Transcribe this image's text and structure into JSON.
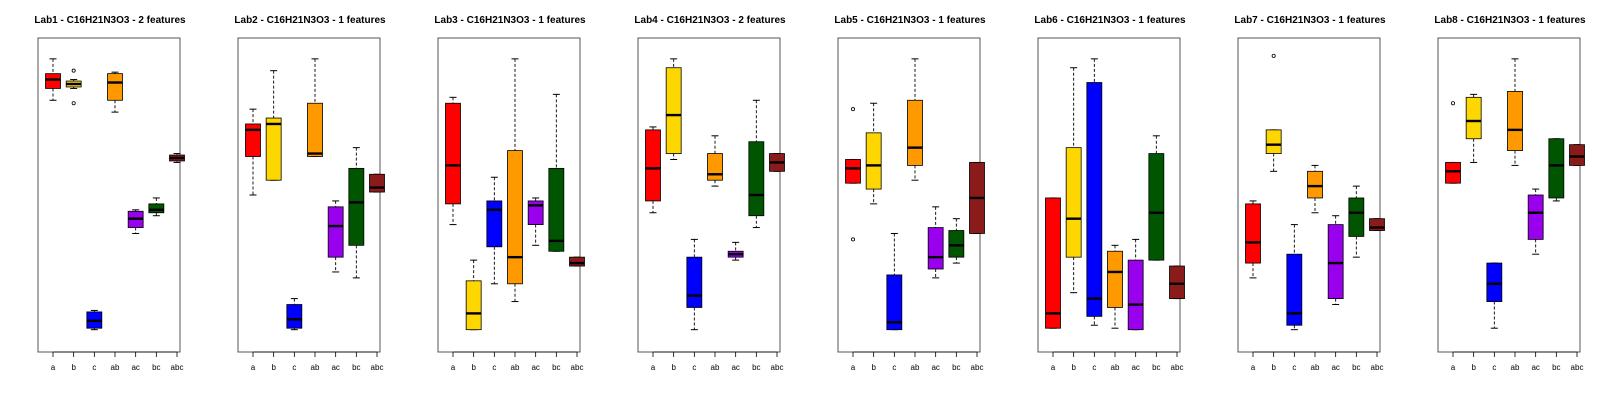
{
  "colors": {
    "a": "#ff0000",
    "b": "#ffd700",
    "c": "#0000ff",
    "ab": "#ff9900",
    "ac": "#9900ee",
    "bc": "#005500",
    "abc": "#8b1a1a"
  },
  "chart_data": [
    {
      "type": "box",
      "title": "Lab1 - C16H21N3O3 - 2 features",
      "categories": [
        "a",
        "b",
        "c",
        "ab",
        "ac",
        "bc",
        "abc"
      ],
      "ylim": [
        0,
        100
      ],
      "boxes": {
        "a": {
          "whislo": 82,
          "q1": 86,
          "med": 89,
          "q3": 91,
          "whishi": 96,
          "outliers": []
        },
        "b": {
          "whislo": 86,
          "q1": 86.5,
          "med": 87.5,
          "q3": 88.5,
          "whishi": 89,
          "outliers": [
            92,
            81
          ]
        },
        "c": {
          "whislo": 4.5,
          "q1": 5,
          "med": 7.5,
          "q3": 10.5,
          "whishi": 11,
          "outliers": []
        },
        "ab": {
          "whislo": 78,
          "q1": 82,
          "med": 88,
          "q3": 91,
          "whishi": 91.5,
          "outliers": []
        },
        "ac": {
          "whislo": 37,
          "q1": 39,
          "med": 42,
          "q3": 44.5,
          "whishi": 45,
          "outliers": []
        },
        "bc": {
          "whislo": 43,
          "q1": 44,
          "med": 45,
          "q3": 47,
          "whishi": 49,
          "outliers": []
        },
        "abc": {
          "whislo": 61,
          "q1": 61.5,
          "med": 62.5,
          "q3": 63.5,
          "whishi": 64,
          "outliers": []
        }
      }
    },
    {
      "type": "box",
      "title": "Lab2 - C16H21N3O3 - 1 features",
      "categories": [
        "a",
        "b",
        "c",
        "ab",
        "ac",
        "bc",
        "abc"
      ],
      "ylim": [
        0,
        100
      ],
      "boxes": {
        "a": {
          "whislo": 50,
          "q1": 63,
          "med": 72,
          "q3": 74,
          "whishi": 79,
          "outliers": []
        },
        "b": {
          "whislo": 55,
          "q1": 55,
          "med": 74,
          "q3": 76,
          "whishi": 92,
          "outliers": []
        },
        "c": {
          "whislo": 4.5,
          "q1": 5,
          "med": 8,
          "q3": 13,
          "whishi": 15,
          "outliers": []
        },
        "ab": {
          "whislo": 63,
          "q1": 63,
          "med": 64,
          "q3": 81,
          "whishi": 96,
          "outliers": []
        },
        "ac": {
          "whislo": 24,
          "q1": 29,
          "med": 39.5,
          "q3": 46,
          "whishi": 48,
          "outliers": []
        },
        "bc": {
          "whislo": 22,
          "q1": 33,
          "med": 47.5,
          "q3": 59,
          "whishi": 66,
          "outliers": []
        },
        "abc": {
          "whislo": 51,
          "q1": 51,
          "med": 52.5,
          "q3": 57,
          "whishi": 57,
          "outliers": []
        }
      }
    },
    {
      "type": "box",
      "title": "Lab3 - C16H21N3O3 - 1 features",
      "categories": [
        "a",
        "b",
        "c",
        "ab",
        "ac",
        "bc",
        "abc"
      ],
      "ylim": [
        0,
        100
      ],
      "boxes": {
        "a": {
          "whislo": 40,
          "q1": 47,
          "med": 60,
          "q3": 81,
          "whishi": 83,
          "outliers": []
        },
        "b": {
          "whislo": 4.5,
          "q1": 4.5,
          "med": 10,
          "q3": 21,
          "whishi": 28,
          "outliers": []
        },
        "c": {
          "whislo": 20,
          "q1": 32.5,
          "med": 45,
          "q3": 48,
          "whishi": 56,
          "outliers": []
        },
        "ab": {
          "whislo": 14,
          "q1": 20,
          "med": 29,
          "q3": 65,
          "whishi": 96,
          "outliers": []
        },
        "ac": {
          "whislo": 33,
          "q1": 40,
          "med": 46.5,
          "q3": 48,
          "whishi": 49,
          "outliers": []
        },
        "bc": {
          "whislo": 31,
          "q1": 31,
          "med": 34.5,
          "q3": 59,
          "whishi": 84,
          "outliers": []
        },
        "abc": {
          "whislo": 26,
          "q1": 26,
          "med": 27,
          "q3": 29,
          "whishi": 29,
          "outliers": []
        }
      }
    },
    {
      "type": "box",
      "title": "Lab4 - C16H21N3O3 - 2 features",
      "categories": [
        "a",
        "b",
        "c",
        "ab",
        "ac",
        "bc",
        "abc"
      ],
      "ylim": [
        0,
        100
      ],
      "boxes": {
        "a": {
          "whislo": 44,
          "q1": 48,
          "med": 59,
          "q3": 72,
          "whishi": 73,
          "outliers": []
        },
        "b": {
          "whislo": 62,
          "q1": 64,
          "med": 77,
          "q3": 93,
          "whishi": 96,
          "outliers": []
        },
        "c": {
          "whislo": 4.5,
          "q1": 12,
          "med": 16,
          "q3": 29,
          "whishi": 35,
          "outliers": []
        },
        "ab": {
          "whislo": 53,
          "q1": 55,
          "med": 57,
          "q3": 64,
          "whishi": 70,
          "outliers": []
        },
        "ac": {
          "whislo": 28,
          "q1": 29,
          "med": 30,
          "q3": 31,
          "whishi": 34,
          "outliers": []
        },
        "bc": {
          "whislo": 39,
          "q1": 43,
          "med": 50,
          "q3": 68,
          "whishi": 82,
          "outliers": []
        },
        "abc": {
          "whislo": 58,
          "q1": 58,
          "med": 61,
          "q3": 64,
          "whishi": 64,
          "outliers": []
        }
      }
    },
    {
      "type": "box",
      "title": "Lab5 - C16H21N3O3 - 1 features",
      "categories": [
        "a",
        "b",
        "c",
        "ab",
        "ac",
        "bc",
        "abc"
      ],
      "ylim": [
        0,
        100
      ],
      "boxes": {
        "a": {
          "whislo": 54,
          "q1": 54,
          "med": 59,
          "q3": 62,
          "whishi": 62,
          "outliers": [
            79,
            35
          ]
        },
        "b": {
          "whislo": 47,
          "q1": 52,
          "med": 60,
          "q3": 71,
          "whishi": 81,
          "outliers": []
        },
        "c": {
          "whislo": 4.5,
          "q1": 4.5,
          "med": 7,
          "q3": 23,
          "whishi": 37,
          "outliers": []
        },
        "ab": {
          "whislo": 55,
          "q1": 60,
          "med": 66,
          "q3": 82,
          "whishi": 96,
          "outliers": []
        },
        "ac": {
          "whislo": 22,
          "q1": 25,
          "med": 29,
          "q3": 39,
          "whishi": 46,
          "outliers": []
        },
        "bc": {
          "whislo": 27,
          "q1": 29,
          "med": 33,
          "q3": 38,
          "whishi": 42,
          "outliers": []
        },
        "abc": {
          "whislo": 37,
          "q1": 37,
          "med": 49,
          "q3": 61,
          "whishi": 61,
          "outliers": []
        }
      }
    },
    {
      "type": "box",
      "title": "Lab6 - C16H21N3O3 - 1 features",
      "categories": [
        "a",
        "b",
        "c",
        "ab",
        "ac",
        "bc",
        "abc"
      ],
      "ylim": [
        0,
        100
      ],
      "boxes": {
        "a": {
          "whislo": 5,
          "q1": 5,
          "med": 10,
          "q3": 49,
          "whishi": 49,
          "outliers": []
        },
        "b": {
          "whislo": 17,
          "q1": 29,
          "med": 42,
          "q3": 66,
          "whishi": 93,
          "outliers": []
        },
        "c": {
          "whislo": 6,
          "q1": 9,
          "med": 15,
          "q3": 88,
          "whishi": 96,
          "outliers": []
        },
        "ab": {
          "whislo": 5,
          "q1": 12,
          "med": 24,
          "q3": 31,
          "whishi": 33,
          "outliers": []
        },
        "ac": {
          "whislo": 4.5,
          "q1": 4.5,
          "med": 13,
          "q3": 28,
          "whishi": 35,
          "outliers": []
        },
        "bc": {
          "whislo": 28,
          "q1": 28,
          "med": 44,
          "q3": 64,
          "whishi": 70,
          "outliers": []
        },
        "abc": {
          "whislo": 15,
          "q1": 15,
          "med": 20,
          "q3": 26,
          "whishi": 26,
          "outliers": []
        }
      }
    },
    {
      "type": "box",
      "title": "Lab7 - C16H21N3O3 - 1 features",
      "categories": [
        "a",
        "b",
        "c",
        "ab",
        "ac",
        "bc",
        "abc"
      ],
      "ylim": [
        0,
        100
      ],
      "boxes": {
        "a": {
          "whislo": 22,
          "q1": 27,
          "med": 34,
          "q3": 47,
          "whishi": 48,
          "outliers": []
        },
        "b": {
          "whislo": 58,
          "q1": 64,
          "med": 67,
          "q3": 72,
          "whishi": 72,
          "outliers": [
            97
          ]
        },
        "c": {
          "whislo": 4.5,
          "q1": 6,
          "med": 10,
          "q3": 30,
          "whishi": 40,
          "outliers": []
        },
        "ab": {
          "whislo": 44,
          "q1": 49,
          "med": 53,
          "q3": 58,
          "whishi": 60,
          "outliers": []
        },
        "ac": {
          "whislo": 13,
          "q1": 15,
          "med": 27,
          "q3": 40,
          "whishi": 43,
          "outliers": []
        },
        "bc": {
          "whislo": 29,
          "q1": 36,
          "med": 44,
          "q3": 49,
          "whishi": 53,
          "outliers": []
        },
        "abc": {
          "whislo": 38,
          "q1": 38,
          "med": 39,
          "q3": 42,
          "whishi": 42,
          "outliers": []
        }
      }
    },
    {
      "type": "box",
      "title": "Lab8 - C16H21N3O3 - 1 features",
      "categories": [
        "a",
        "b",
        "c",
        "ab",
        "ac",
        "bc",
        "abc"
      ],
      "ylim": [
        0,
        100
      ],
      "boxes": {
        "a": {
          "whislo": 54,
          "q1": 54,
          "med": 58,
          "q3": 61,
          "whishi": 61,
          "outliers": [
            81
          ]
        },
        "b": {
          "whislo": 61,
          "q1": 69,
          "med": 75,
          "q3": 83,
          "whishi": 84,
          "outliers": []
        },
        "c": {
          "whislo": 5,
          "q1": 14,
          "med": 20,
          "q3": 27,
          "whishi": 27,
          "outliers": []
        },
        "ab": {
          "whislo": 60,
          "q1": 65,
          "med": 72,
          "q3": 85,
          "whishi": 96,
          "outliers": []
        },
        "ac": {
          "whislo": 30,
          "q1": 35,
          "med": 44,
          "q3": 50,
          "whishi": 52,
          "outliers": []
        },
        "bc": {
          "whislo": 48,
          "q1": 49,
          "med": 60,
          "q3": 69,
          "whishi": 69,
          "outliers": []
        },
        "abc": {
          "whislo": 60,
          "q1": 60,
          "med": 63,
          "q3": 67,
          "whishi": 67,
          "outliers": []
        }
      }
    }
  ]
}
